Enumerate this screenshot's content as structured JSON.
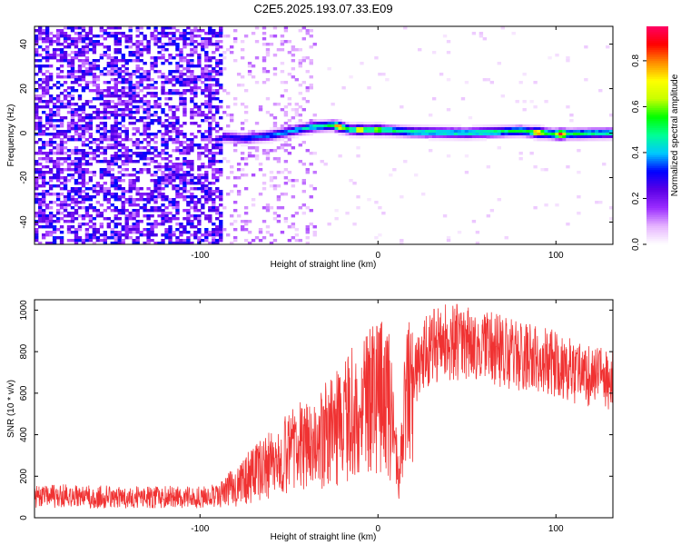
{
  "title": "C2E5.2025.193.07.33.E09",
  "colors": {
    "snr_line": "#f03232",
    "axis": "#000000",
    "background": "#ffffff"
  },
  "chart_data": [
    {
      "type": "heatmap",
      "xlabel": "Height of straight line (km)",
      "ylabel": "Frequency (Hz)",
      "xlim": [
        -193,
        132
      ],
      "ylim": [
        -50,
        48
      ],
      "x_ticks": [
        -100,
        0,
        100
      ],
      "x_tick_labels": [
        "-100",
        "0",
        "100"
      ],
      "y_ticks": [
        -40,
        -20,
        0,
        20,
        40
      ],
      "y_tick_labels": [
        "-40",
        "-20",
        "0",
        "20",
        "40"
      ],
      "grid": false,
      "colorbar": {
        "label": "Normalized spectral amplitude",
        "range": [
          0,
          0.95
        ],
        "ticks": [
          0.0,
          0.2,
          0.4,
          0.6,
          0.8
        ],
        "tick_labels": [
          "0.0",
          "0.2",
          "0.4",
          "0.6",
          "0.8"
        ],
        "colormap": [
          "#ffffff",
          "#e6b4ff",
          "#9b2dff",
          "#5a00e6",
          "#0000ff",
          "#00c8ff",
          "#00ff96",
          "#00ff00",
          "#c8ff00",
          "#ffff00",
          "#ff8c00",
          "#ff0000",
          "#ff0064"
        ]
      },
      "noise_region_x": [
        -193,
        -88
      ],
      "transition_region_x": [
        -88,
        -35
      ],
      "signal_track": [
        {
          "x": -88,
          "freq": -1.5,
          "amp": 0.3
        },
        {
          "x": -75,
          "freq": -2.5,
          "amp": 0.35
        },
        {
          "x": -60,
          "freq": -1.0,
          "amp": 0.4
        },
        {
          "x": -45,
          "freq": 1.5,
          "amp": 0.45
        },
        {
          "x": -35,
          "freq": 3.0,
          "amp": 0.5
        },
        {
          "x": -25,
          "freq": 3.5,
          "amp": 0.55
        },
        {
          "x": -15,
          "freq": 1.5,
          "amp": 0.55
        },
        {
          "x": 0,
          "freq": 1.5,
          "amp": 0.55
        },
        {
          "x": 20,
          "freq": 0.5,
          "amp": 0.5
        },
        {
          "x": 50,
          "freq": 0.0,
          "amp": 0.5
        },
        {
          "x": 80,
          "freq": 1.0,
          "amp": 0.55
        },
        {
          "x": 100,
          "freq": -0.5,
          "amp": 0.6
        },
        {
          "x": 132,
          "freq": 0.0,
          "amp": 0.5
        }
      ],
      "hotspots": [
        {
          "x": -22,
          "freq": 3.0,
          "amp": 0.85
        },
        {
          "x": -10,
          "freq": 1.5,
          "amp": 0.8
        },
        {
          "x": 0,
          "freq": 1.5,
          "amp": 0.75
        },
        {
          "x": 90,
          "freq": 1.0,
          "amp": 0.9
        },
        {
          "x": 103,
          "freq": -0.5,
          "amp": 0.95
        }
      ]
    },
    {
      "type": "line",
      "xlabel": "Height of straight line (km)",
      "ylabel": "SNR (10 * v/v)",
      "xlim": [
        -193,
        132
      ],
      "ylim": [
        0,
        1050
      ],
      "x_ticks": [
        -100,
        0,
        100
      ],
      "x_tick_labels": [
        "-100",
        "0",
        "100"
      ],
      "y_ticks": [
        0,
        200,
        400,
        600,
        800,
        1000
      ],
      "y_tick_labels": [
        "0",
        "200",
        "400",
        "600",
        "800",
        "1000"
      ],
      "grid": false,
      "series": [
        {
          "x": [
            -193,
            -180,
            -160,
            -140,
            -120,
            -100,
            -90,
            -80,
            -70,
            -60,
            -50,
            -40,
            -30,
            -20,
            -10,
            0,
            5,
            10,
            12,
            15,
            20,
            25,
            30,
            40,
            50,
            60,
            70,
            80,
            90,
            100,
            110,
            120,
            132
          ],
          "y": [
            100,
            105,
            100,
            100,
            100,
            100,
            105,
            150,
            210,
            260,
            310,
            360,
            400,
            460,
            560,
            590,
            630,
            300,
            150,
            520,
            660,
            780,
            820,
            850,
            840,
            820,
            800,
            780,
            760,
            740,
            700,
            680,
            660
          ]
        }
      ]
    }
  ]
}
